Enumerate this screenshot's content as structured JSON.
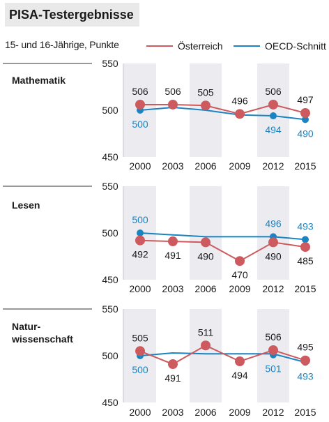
{
  "header": {
    "title": "PISA-Testergebnisse",
    "subtitle": "15- und 16-Jährige, Punkte"
  },
  "legend": {
    "austria": "Österreich",
    "oecd": "OECD-Schnitt"
  },
  "colors": {
    "austria": "#cd5a5e",
    "oecd": "#1a84c3",
    "band": "#ebebf0",
    "text": "#1a1a1a",
    "axis": "#333333"
  },
  "chart_data": [
    {
      "type": "line",
      "panel": "Mathematik",
      "x": [
        "2000",
        "2003",
        "2006",
        "2009",
        "2012",
        "2015"
      ],
      "ylim": [
        450,
        550
      ],
      "yticks": [
        "550",
        "500",
        "450"
      ],
      "series": [
        {
          "name": "Österreich",
          "values": [
            506,
            506,
            505,
            496,
            506,
            497
          ]
        },
        {
          "name": "OECD-Schnitt",
          "values": [
            500,
            null,
            null,
            null,
            494,
            490
          ]
        }
      ],
      "oecd_line": [
        500,
        503,
        500,
        495,
        494,
        490
      ]
    },
    {
      "type": "line",
      "panel": "Lesen",
      "x": [
        "2000",
        "2003",
        "2006",
        "2009",
        "2012",
        "2015"
      ],
      "ylim": [
        450,
        550
      ],
      "yticks": [
        "550",
        "500",
        "450"
      ],
      "series": [
        {
          "name": "Österreich",
          "values": [
            492,
            491,
            490,
            470,
            490,
            485
          ]
        },
        {
          "name": "OECD-Schnitt",
          "values": [
            500,
            null,
            null,
            null,
            496,
            493
          ]
        }
      ],
      "oecd_line": [
        500,
        498,
        496,
        496,
        496,
        493
      ]
    },
    {
      "type": "line",
      "panel": "Natur-\nwissenschaft",
      "x": [
        "2000",
        "2003",
        "2006",
        "2009",
        "2012",
        "2015"
      ],
      "ylim": [
        450,
        550
      ],
      "yticks": [
        "550",
        "500",
        "450"
      ],
      "series": [
        {
          "name": "Österreich",
          "values": [
            505,
            491,
            511,
            494,
            506,
            495
          ]
        },
        {
          "name": "OECD-Schnitt",
          "values": [
            500,
            null,
            null,
            null,
            501,
            493
          ]
        }
      ],
      "oecd_line": [
        500,
        503,
        502,
        502,
        502,
        493
      ]
    }
  ]
}
